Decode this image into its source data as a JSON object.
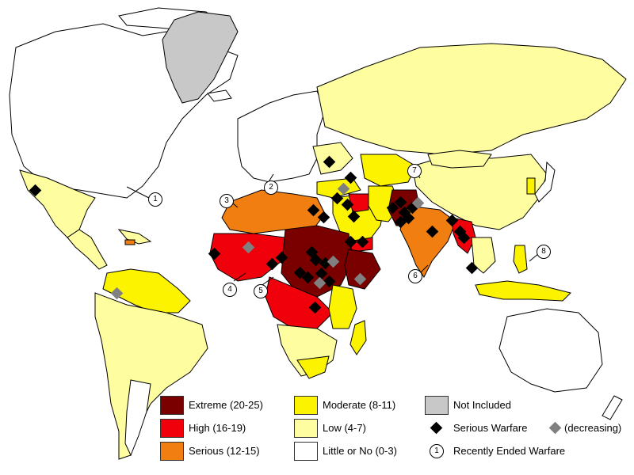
{
  "colors": {
    "extreme": "#7a0000",
    "high": "#f0000b",
    "serious": "#f07e10",
    "moderate": "#fbf300",
    "low": "#fefea0",
    "little": "#ffffff",
    "not_included": "#c8c8c8",
    "warfare": "#000000",
    "warfare_decreasing": "#808080",
    "border": "#000000"
  },
  "legend": {
    "extreme": "Extreme (20-25)",
    "high": "High (16-19)",
    "serious": "Serious (12-15)",
    "moderate": "Moderate (8-11)",
    "low": "Low (4-7)",
    "little": "Little or No (0-3)",
    "not_included": "Not Included",
    "serious_warfare": "Serious Warfare",
    "decreasing": "(decreasing)",
    "recently_ended": "Recently Ended Warfare",
    "recently_ended_symbol": "1"
  },
  "callouts": [
    "1",
    "2",
    "3",
    "4",
    "5",
    "6",
    "7",
    "8"
  ]
}
